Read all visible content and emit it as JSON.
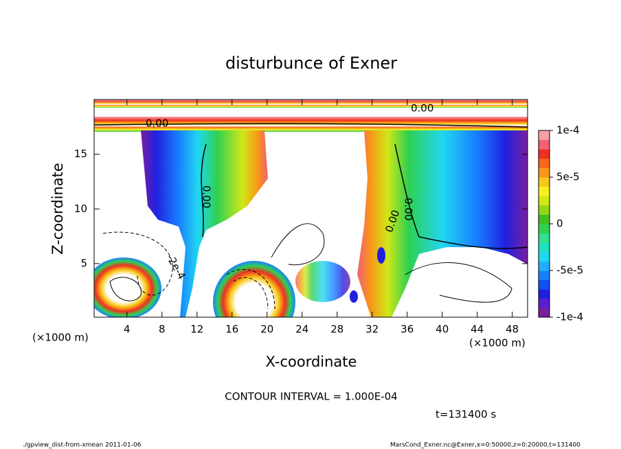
{
  "chart_data": {
    "type": "contour",
    "title": "disturbunce of Exner",
    "x_label": "X-coordinate",
    "y_label": "Z-coordinate",
    "x_unit_left": "(×1000 m)",
    "x_unit_right": "(×1000 m)",
    "xlim": [
      0.25,
      49.75
    ],
    "ylim": [
      0.1,
      20
    ],
    "xticks": [
      4,
      8,
      12,
      16,
      20,
      24,
      28,
      32,
      36,
      40,
      44,
      48
    ],
    "yticks": [
      5,
      10,
      15
    ],
    "colorbar": {
      "lim": [
        -0.0001,
        0.0001
      ],
      "ticks": [
        {
          "value": 0.0001,
          "label": "1e-4"
        },
        {
          "value": 5e-05,
          "label": "5e-5"
        },
        0,
        {
          "value": -5e-05,
          "label": "-5e-5"
        },
        {
          "value": -0.0001,
          "label": "-1e-4"
        }
      ],
      "colors": [
        "#7a1fa0",
        "#5a1fd0",
        "#2020e0",
        "#1050f0",
        "#1880ff",
        "#20b0ff",
        "#20d8f0",
        "#20e0c0",
        "#30e090",
        "#30d050",
        "#40c020",
        "#90d818",
        "#d0e818",
        "#f8f020",
        "#f8c818",
        "#f89818",
        "#f86818",
        "#f03020",
        "#f06070",
        "#f8a0a8"
      ]
    },
    "contour_labels": [
      "0.00",
      "0.00",
      "0.00",
      "0.00",
      "0.00",
      "-2e-4"
    ],
    "contour_interval": "CONTOUR INTERVAL = 1.000E-04",
    "time_label": "t=131400 s",
    "footer_left": "./gpview_dist-from-xmean  2011-01-06",
    "footer_right": "MarsCond_Exner.nc@Exner,x=0:50000,z=0:20000,t=131400"
  }
}
